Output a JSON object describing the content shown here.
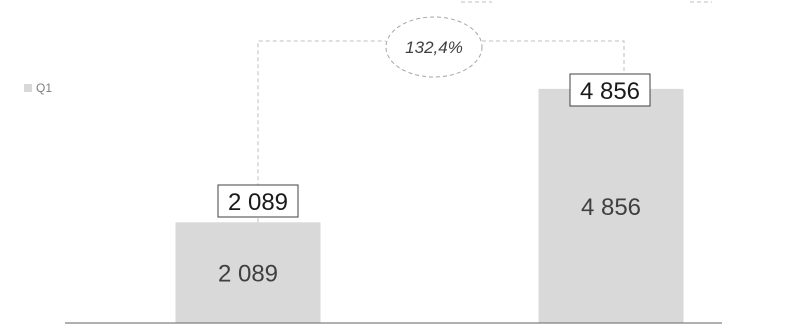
{
  "chart_data": {
    "type": "bar",
    "categories": [
      "",
      ""
    ],
    "series": [
      {
        "name": "Q1",
        "values": [
          2089,
          4856
        ]
      }
    ],
    "value_labels": [
      "2 089",
      "4 856"
    ],
    "callout_labels": [
      "2 089",
      "4 856"
    ],
    "growth_label": "132,4%",
    "ylim": [
      0,
      6700
    ],
    "legend_position": "left",
    "grid": false,
    "colors": {
      "bar": "#d9d9d9",
      "axis": "#808080",
      "connector": "#bfbfbf",
      "text": "#404040",
      "legend_text": "#7f7f7f"
    }
  }
}
